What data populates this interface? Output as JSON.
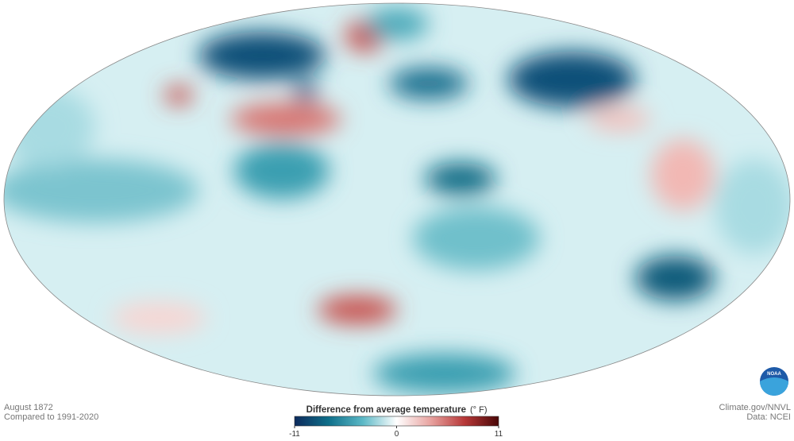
{
  "map": {
    "date": "August 1872",
    "baseline": "Compared to 1991-2020",
    "credit": "Climate.gov/NNVL",
    "source": "Data: NCEI",
    "logo": "NOAA"
  },
  "legend": {
    "title": "Difference from average temperature",
    "unit": "(° F)",
    "lim": [
      -11,
      11
    ],
    "ticks": [
      -11,
      0,
      11
    ],
    "colors": [
      "#0d2a5c",
      "#0e6f8a",
      "#5bb8c6",
      "#ffffff",
      "#e8a3a0",
      "#b73838",
      "#4a0707"
    ]
  }
}
